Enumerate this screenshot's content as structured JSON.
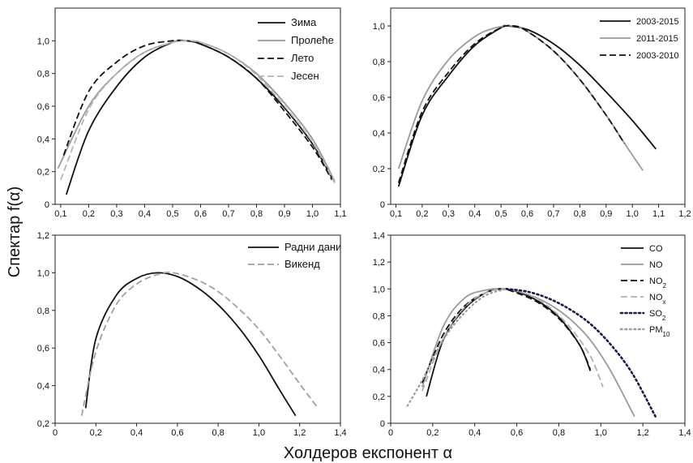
{
  "figure": {
    "ylabel": "Спектар f(α)",
    "xlabel": "Холдеров експонент α"
  },
  "chart_data": [
    {
      "type": "line",
      "ylim": [
        0,
        1.2
      ],
      "xlim": [
        0.08,
        1.1
      ],
      "xticks": [
        "0,1",
        "0,2",
        "0,3",
        "0,4",
        "0,5",
        "0,6",
        "0,7",
        "0,8",
        "0,9",
        "1,0",
        "1,1"
      ],
      "xtick_values": [
        0.1,
        0.2,
        0.3,
        0.4,
        0.5,
        0.6,
        0.7,
        0.8,
        0.9,
        1.0,
        1.1
      ],
      "yticks": [
        "0",
        "0,2",
        "0,4",
        "0,6",
        "0,8",
        "1,0"
      ],
      "ytick_values": [
        0,
        0.2,
        0.4,
        0.6,
        0.8,
        1.0
      ],
      "legend_position": "top-right",
      "series": [
        {
          "name": "Зима",
          "color": "#111111",
          "dash": "solid",
          "x": [
            0.12,
            0.2,
            0.3,
            0.4,
            0.5,
            0.55,
            0.6,
            0.7,
            0.8,
            0.9,
            1.0,
            1.07
          ],
          "y": [
            0.06,
            0.45,
            0.72,
            0.9,
            0.99,
            1.0,
            0.98,
            0.9,
            0.77,
            0.59,
            0.37,
            0.16
          ]
        },
        {
          "name": "Пролеће",
          "color": "#9a9a9a",
          "dash": "solid",
          "x": [
            0.09,
            0.2,
            0.3,
            0.4,
            0.5,
            0.55,
            0.6,
            0.7,
            0.8,
            0.9,
            1.0,
            1.08
          ],
          "y": [
            0.22,
            0.6,
            0.8,
            0.93,
            0.99,
            1.0,
            0.99,
            0.92,
            0.8,
            0.62,
            0.4,
            0.14
          ]
        },
        {
          "name": "Лето",
          "color": "#111111",
          "dash": "dashed",
          "x": [
            0.11,
            0.2,
            0.3,
            0.4,
            0.5,
            0.55,
            0.6,
            0.7,
            0.8,
            0.9,
            1.0,
            1.07
          ],
          "y": [
            0.3,
            0.69,
            0.87,
            0.97,
            1.0,
            1.0,
            0.98,
            0.9,
            0.77,
            0.57,
            0.35,
            0.15
          ]
        },
        {
          "name": "Јесен",
          "color": "#b5b5b5",
          "dash": "dashed",
          "x": [
            0.1,
            0.2,
            0.3,
            0.4,
            0.5,
            0.55,
            0.6,
            0.7,
            0.8,
            0.9,
            1.0,
            1.08
          ],
          "y": [
            0.15,
            0.58,
            0.8,
            0.93,
            0.99,
            1.0,
            0.99,
            0.92,
            0.79,
            0.6,
            0.38,
            0.13
          ]
        }
      ]
    },
    {
      "type": "line",
      "ylim": [
        0,
        1.1
      ],
      "xlim": [
        0.08,
        1.2
      ],
      "xticks": [
        "0,1",
        "0,2",
        "0,3",
        "0,4",
        "0,5",
        "0,6",
        "0,7",
        "0,8",
        "0,9",
        "1,0",
        "1,1",
        "1,2"
      ],
      "xtick_values": [
        0.1,
        0.2,
        0.3,
        0.4,
        0.5,
        0.6,
        0.7,
        0.8,
        0.9,
        1.0,
        1.1,
        1.2
      ],
      "yticks": [
        "0",
        "0,2",
        "0,4",
        "0,6",
        "0,8",
        "1,0"
      ],
      "ytick_values": [
        0,
        0.2,
        0.4,
        0.6,
        0.8,
        1.0
      ],
      "legend_position": "top-right",
      "series": [
        {
          "name": "2003-2015",
          "color": "#111111",
          "dash": "solid",
          "x": [
            0.11,
            0.2,
            0.3,
            0.4,
            0.5,
            0.52,
            0.6,
            0.7,
            0.8,
            0.9,
            1.0,
            1.09
          ],
          "y": [
            0.1,
            0.5,
            0.72,
            0.89,
            0.99,
            1.0,
            0.98,
            0.9,
            0.78,
            0.63,
            0.47,
            0.31
          ]
        },
        {
          "name": "2011-2015",
          "color": "#9a9a9a",
          "dash": "solid",
          "x": [
            0.11,
            0.2,
            0.3,
            0.4,
            0.48,
            0.55,
            0.6,
            0.7,
            0.8,
            0.9,
            0.98,
            1.04
          ],
          "y": [
            0.2,
            0.58,
            0.81,
            0.94,
            0.99,
            1.0,
            0.97,
            0.86,
            0.7,
            0.5,
            0.32,
            0.19
          ]
        },
        {
          "name": "2003-2010",
          "color": "#111111",
          "dash": "dashed",
          "x": [
            0.11,
            0.2,
            0.3,
            0.4,
            0.5,
            0.55,
            0.6,
            0.7,
            0.8,
            0.9,
            0.97
          ],
          "y": [
            0.12,
            0.52,
            0.74,
            0.9,
            0.99,
            1.0,
            0.97,
            0.86,
            0.7,
            0.5,
            0.34
          ]
        }
      ]
    },
    {
      "type": "line",
      "ylim": [
        0.2,
        1.2
      ],
      "xlim": [
        0,
        1.4
      ],
      "xticks": [
        "0",
        "0,2",
        "0,4",
        "0,6",
        "0,8",
        "1,0",
        "1,2",
        "1,4"
      ],
      "xtick_values": [
        0,
        0.2,
        0.4,
        0.6,
        0.8,
        1.0,
        1.2,
        1.4
      ],
      "yticks": [
        "0,2",
        "0,4",
        "0,6",
        "0,8",
        "1,0",
        "1,2"
      ],
      "ytick_values": [
        0.2,
        0.4,
        0.6,
        0.8,
        1.0,
        1.2
      ],
      "legend_position": "top-right",
      "series": [
        {
          "name": "Радни дани",
          "color": "#111111",
          "dash": "solid",
          "x": [
            0.15,
            0.2,
            0.3,
            0.4,
            0.5,
            0.6,
            0.7,
            0.8,
            0.9,
            1.0,
            1.1,
            1.18
          ],
          "y": [
            0.28,
            0.65,
            0.88,
            0.97,
            1.0,
            0.98,
            0.92,
            0.83,
            0.71,
            0.56,
            0.38,
            0.24
          ]
        },
        {
          "name": "Викенд",
          "color": "#a0a0a0",
          "dash": "dashed",
          "x": [
            0.13,
            0.2,
            0.3,
            0.4,
            0.5,
            0.58,
            0.7,
            0.8,
            0.9,
            1.0,
            1.1,
            1.2,
            1.29
          ],
          "y": [
            0.24,
            0.58,
            0.83,
            0.94,
            0.99,
            1.0,
            0.96,
            0.9,
            0.81,
            0.7,
            0.56,
            0.41,
            0.28
          ]
        }
      ]
    },
    {
      "type": "line",
      "ylim": [
        0,
        1.4
      ],
      "xlim": [
        0,
        1.4
      ],
      "xticks": [
        "0",
        "0,2",
        "0,4",
        "0,6",
        "0,8",
        "1,0",
        "1,2",
        "1,4"
      ],
      "xtick_values": [
        0,
        0.2,
        0.4,
        0.6,
        0.8,
        1.0,
        1.2,
        1.4
      ],
      "yticks": [
        "0",
        "0,2",
        "0,4",
        "0,6",
        "0,8",
        "1,0",
        "1,2",
        "1,4"
      ],
      "ytick_values": [
        0,
        0.2,
        0.4,
        0.6,
        0.8,
        1.0,
        1.2,
        1.4
      ],
      "legend_position": "top-right",
      "series": [
        {
          "name": "CO",
          "label_main": "CO",
          "label_sub": "",
          "color": "#111111",
          "dash": "solid",
          "x": [
            0.17,
            0.25,
            0.35,
            0.45,
            0.53,
            0.6,
            0.7,
            0.8,
            0.9,
            0.95
          ],
          "y": [
            0.2,
            0.62,
            0.85,
            0.97,
            1.0,
            0.98,
            0.91,
            0.79,
            0.58,
            0.39
          ]
        },
        {
          "name": "NO",
          "label_main": "NO",
          "label_sub": "",
          "color": "#9a9a9a",
          "dash": "solid",
          "x": [
            0.15,
            0.25,
            0.35,
            0.45,
            0.55,
            0.65,
            0.75,
            0.85,
            0.95,
            1.05,
            1.16
          ],
          "y": [
            0.27,
            0.72,
            0.93,
            0.99,
            1.0,
            0.96,
            0.89,
            0.78,
            0.62,
            0.38,
            0.05
          ]
        },
        {
          "name": "NO2",
          "label_main": "NO",
          "label_sub": "2",
          "color": "#111111",
          "dash": "dashed",
          "x": [
            0.15,
            0.25,
            0.35,
            0.45,
            0.53,
            0.6,
            0.7,
            0.8,
            0.9,
            0.95
          ],
          "y": [
            0.3,
            0.66,
            0.87,
            0.97,
            1.0,
            0.97,
            0.9,
            0.78,
            0.58,
            0.4
          ]
        },
        {
          "name": "NOx",
          "label_main": "NO",
          "label_sub": "x",
          "color": "#b0b0b0",
          "dash": "dashed",
          "x": [
            0.15,
            0.25,
            0.35,
            0.45,
            0.55,
            0.65,
            0.75,
            0.85,
            0.95,
            1.01
          ],
          "y": [
            0.24,
            0.63,
            0.86,
            0.97,
            1.0,
            0.96,
            0.87,
            0.72,
            0.5,
            0.27
          ]
        },
        {
          "name": "SO2",
          "label_main": "SO",
          "label_sub": "2",
          "color": "#1a1a4a",
          "dash": "dotted-heavy",
          "x": [
            0.55,
            0.65,
            0.75,
            0.85,
            0.95,
            1.05,
            1.15,
            1.26
          ],
          "y": [
            1.0,
            0.98,
            0.93,
            0.85,
            0.74,
            0.58,
            0.37,
            0.05
          ]
        },
        {
          "name": "PM10",
          "label_main": "PM",
          "label_sub": "10",
          "color": "#9a9a9a",
          "dash": "dotted",
          "x": [
            0.08,
            0.15,
            0.25,
            0.35,
            0.45,
            0.55
          ],
          "y": [
            0.13,
            0.32,
            0.62,
            0.82,
            0.95,
            1.0
          ]
        }
      ]
    }
  ]
}
